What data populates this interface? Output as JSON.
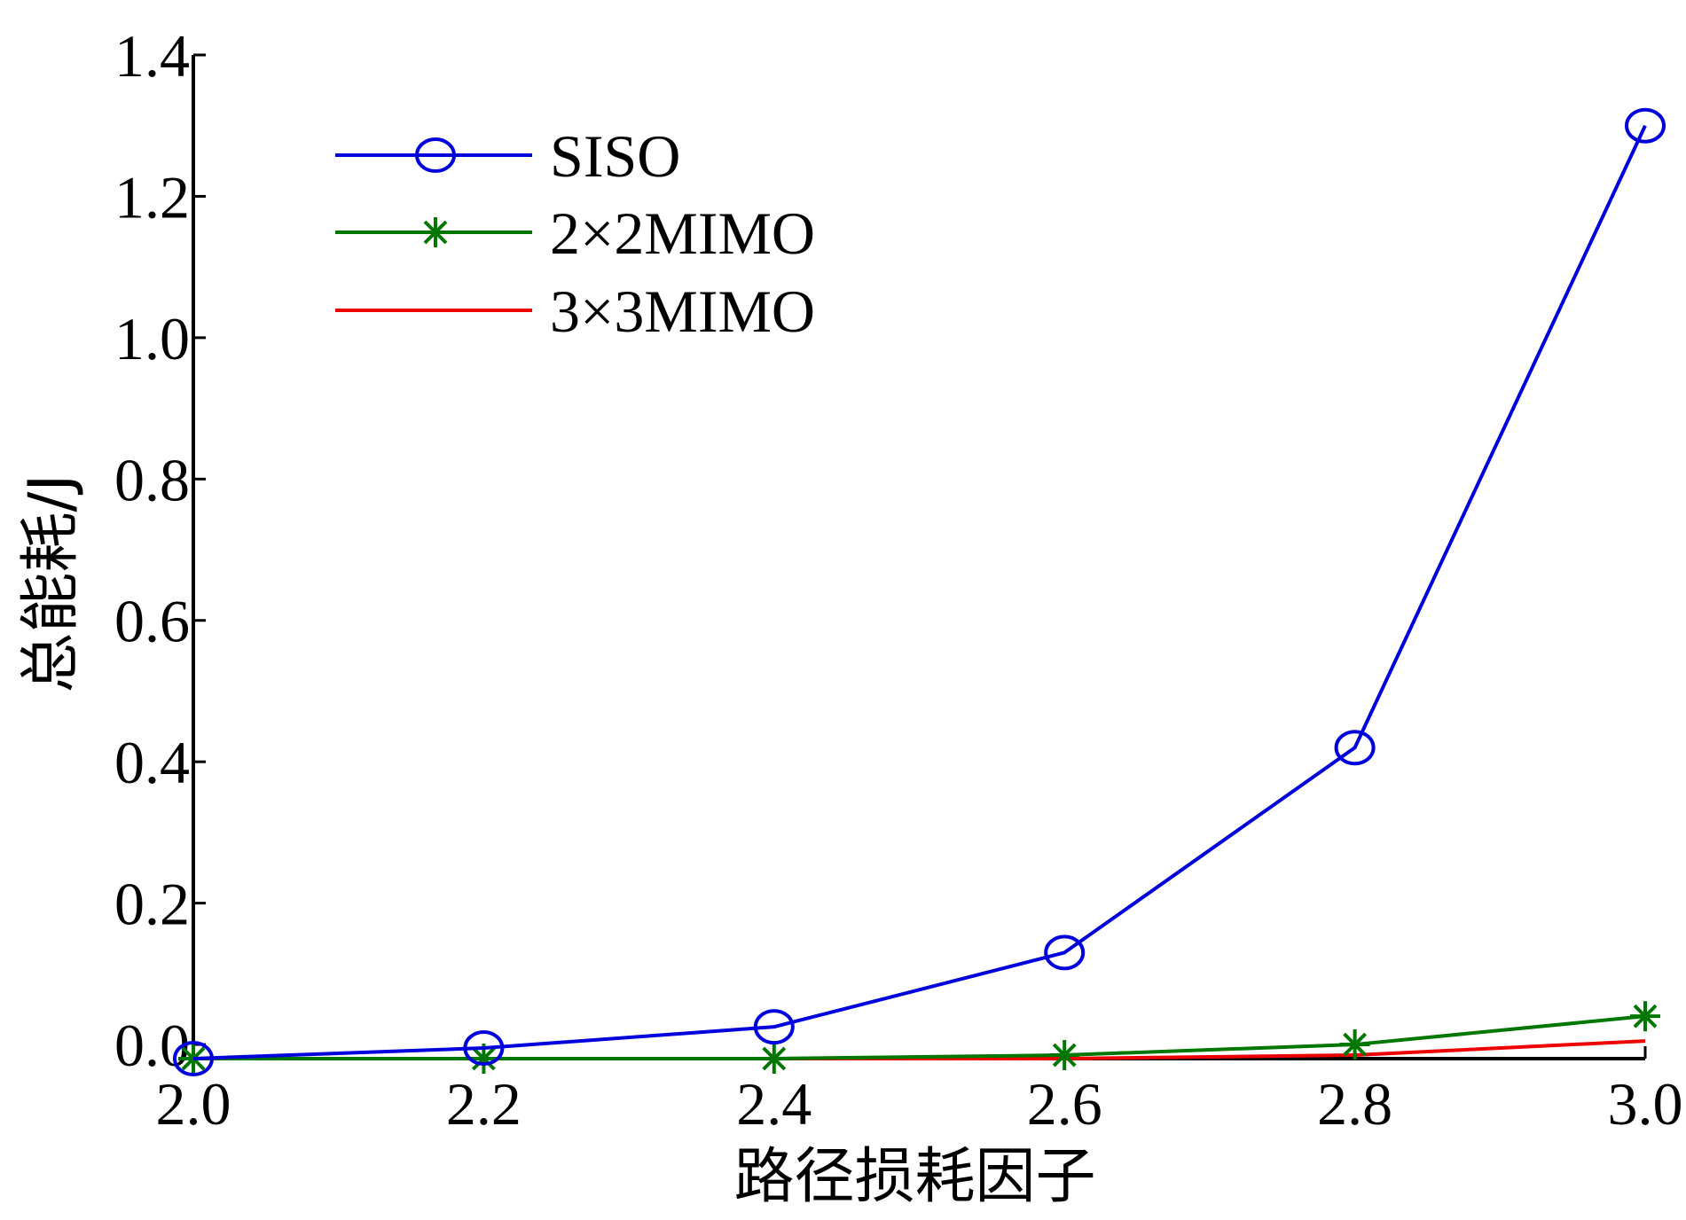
{
  "chart_data": {
    "type": "line",
    "title": "",
    "xlabel": "路径损耗因子",
    "ylabel": "总能耗/J",
    "x": [
      2.0,
      2.2,
      2.4,
      2.6,
      2.8,
      3.0
    ],
    "xticks": [
      "2.0",
      "2.2",
      "2.4",
      "2.6",
      "2.8",
      "3.0"
    ],
    "yticks": [
      "0.0",
      "0.2",
      "0.4",
      "0.6",
      "0.8",
      "1.0",
      "1.2",
      "1.4"
    ],
    "xlim": [
      2.0,
      3.0
    ],
    "ylim": [
      -0.02,
      1.4
    ],
    "grid": false,
    "legend_position": "top-left",
    "series": [
      {
        "name": "SISO",
        "values": [
          -0.02,
          -0.005,
          0.025,
          0.13,
          0.42,
          1.3
        ],
        "color": "#0000dd",
        "marker": "circle"
      },
      {
        "name": "2×2MIMO",
        "values": [
          -0.02,
          -0.02,
          -0.02,
          -0.015,
          0.0,
          0.04
        ],
        "color": "#007700",
        "marker": "star"
      },
      {
        "name": "3×3MIMO",
        "values": [
          -0.02,
          -0.02,
          -0.02,
          -0.02,
          -0.015,
          0.005
        ],
        "color": "#ee0000",
        "marker": "none"
      }
    ]
  }
}
